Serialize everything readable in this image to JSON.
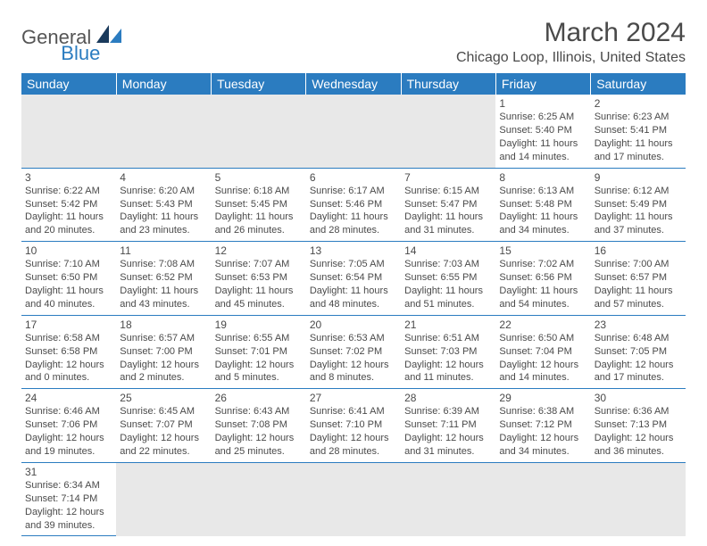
{
  "header": {
    "logo_general": "General",
    "logo_blue": "Blue",
    "month_title": "March 2024",
    "location": "Chicago Loop, Illinois, United States"
  },
  "colors": {
    "header_bg": "#2b7cc0",
    "header_text": "#ffffff",
    "cell_border": "#2b7cc0",
    "text": "#4a4a4a",
    "empty_bg": "#e8e8e8",
    "logo_blue": "#2b7cc0",
    "logo_dark": "#1a3a5c"
  },
  "typography": {
    "month_title_fontsize": 30,
    "location_fontsize": 16,
    "dayheader_fontsize": 14,
    "daynum_fontsize": 12,
    "body_fontsize": 11
  },
  "day_headers": [
    "Sunday",
    "Monday",
    "Tuesday",
    "Wednesday",
    "Thursday",
    "Friday",
    "Saturday"
  ],
  "weeks": [
    [
      null,
      null,
      null,
      null,
      null,
      {
        "n": "1",
        "sunrise": "Sunrise: 6:25 AM",
        "sunset": "Sunset: 5:40 PM",
        "daylight": "Daylight: 11 hours and 14 minutes."
      },
      {
        "n": "2",
        "sunrise": "Sunrise: 6:23 AM",
        "sunset": "Sunset: 5:41 PM",
        "daylight": "Daylight: 11 hours and 17 minutes."
      }
    ],
    [
      {
        "n": "3",
        "sunrise": "Sunrise: 6:22 AM",
        "sunset": "Sunset: 5:42 PM",
        "daylight": "Daylight: 11 hours and 20 minutes."
      },
      {
        "n": "4",
        "sunrise": "Sunrise: 6:20 AM",
        "sunset": "Sunset: 5:43 PM",
        "daylight": "Daylight: 11 hours and 23 minutes."
      },
      {
        "n": "5",
        "sunrise": "Sunrise: 6:18 AM",
        "sunset": "Sunset: 5:45 PM",
        "daylight": "Daylight: 11 hours and 26 minutes."
      },
      {
        "n": "6",
        "sunrise": "Sunrise: 6:17 AM",
        "sunset": "Sunset: 5:46 PM",
        "daylight": "Daylight: 11 hours and 28 minutes."
      },
      {
        "n": "7",
        "sunrise": "Sunrise: 6:15 AM",
        "sunset": "Sunset: 5:47 PM",
        "daylight": "Daylight: 11 hours and 31 minutes."
      },
      {
        "n": "8",
        "sunrise": "Sunrise: 6:13 AM",
        "sunset": "Sunset: 5:48 PM",
        "daylight": "Daylight: 11 hours and 34 minutes."
      },
      {
        "n": "9",
        "sunrise": "Sunrise: 6:12 AM",
        "sunset": "Sunset: 5:49 PM",
        "daylight": "Daylight: 11 hours and 37 minutes."
      }
    ],
    [
      {
        "n": "10",
        "sunrise": "Sunrise: 7:10 AM",
        "sunset": "Sunset: 6:50 PM",
        "daylight": "Daylight: 11 hours and 40 minutes."
      },
      {
        "n": "11",
        "sunrise": "Sunrise: 7:08 AM",
        "sunset": "Sunset: 6:52 PM",
        "daylight": "Daylight: 11 hours and 43 minutes."
      },
      {
        "n": "12",
        "sunrise": "Sunrise: 7:07 AM",
        "sunset": "Sunset: 6:53 PM",
        "daylight": "Daylight: 11 hours and 45 minutes."
      },
      {
        "n": "13",
        "sunrise": "Sunrise: 7:05 AM",
        "sunset": "Sunset: 6:54 PM",
        "daylight": "Daylight: 11 hours and 48 minutes."
      },
      {
        "n": "14",
        "sunrise": "Sunrise: 7:03 AM",
        "sunset": "Sunset: 6:55 PM",
        "daylight": "Daylight: 11 hours and 51 minutes."
      },
      {
        "n": "15",
        "sunrise": "Sunrise: 7:02 AM",
        "sunset": "Sunset: 6:56 PM",
        "daylight": "Daylight: 11 hours and 54 minutes."
      },
      {
        "n": "16",
        "sunrise": "Sunrise: 7:00 AM",
        "sunset": "Sunset: 6:57 PM",
        "daylight": "Daylight: 11 hours and 57 minutes."
      }
    ],
    [
      {
        "n": "17",
        "sunrise": "Sunrise: 6:58 AM",
        "sunset": "Sunset: 6:58 PM",
        "daylight": "Daylight: 12 hours and 0 minutes."
      },
      {
        "n": "18",
        "sunrise": "Sunrise: 6:57 AM",
        "sunset": "Sunset: 7:00 PM",
        "daylight": "Daylight: 12 hours and 2 minutes."
      },
      {
        "n": "19",
        "sunrise": "Sunrise: 6:55 AM",
        "sunset": "Sunset: 7:01 PM",
        "daylight": "Daylight: 12 hours and 5 minutes."
      },
      {
        "n": "20",
        "sunrise": "Sunrise: 6:53 AM",
        "sunset": "Sunset: 7:02 PM",
        "daylight": "Daylight: 12 hours and 8 minutes."
      },
      {
        "n": "21",
        "sunrise": "Sunrise: 6:51 AM",
        "sunset": "Sunset: 7:03 PM",
        "daylight": "Daylight: 12 hours and 11 minutes."
      },
      {
        "n": "22",
        "sunrise": "Sunrise: 6:50 AM",
        "sunset": "Sunset: 7:04 PM",
        "daylight": "Daylight: 12 hours and 14 minutes."
      },
      {
        "n": "23",
        "sunrise": "Sunrise: 6:48 AM",
        "sunset": "Sunset: 7:05 PM",
        "daylight": "Daylight: 12 hours and 17 minutes."
      }
    ],
    [
      {
        "n": "24",
        "sunrise": "Sunrise: 6:46 AM",
        "sunset": "Sunset: 7:06 PM",
        "daylight": "Daylight: 12 hours and 19 minutes."
      },
      {
        "n": "25",
        "sunrise": "Sunrise: 6:45 AM",
        "sunset": "Sunset: 7:07 PM",
        "daylight": "Daylight: 12 hours and 22 minutes."
      },
      {
        "n": "26",
        "sunrise": "Sunrise: 6:43 AM",
        "sunset": "Sunset: 7:08 PM",
        "daylight": "Daylight: 12 hours and 25 minutes."
      },
      {
        "n": "27",
        "sunrise": "Sunrise: 6:41 AM",
        "sunset": "Sunset: 7:10 PM",
        "daylight": "Daylight: 12 hours and 28 minutes."
      },
      {
        "n": "28",
        "sunrise": "Sunrise: 6:39 AM",
        "sunset": "Sunset: 7:11 PM",
        "daylight": "Daylight: 12 hours and 31 minutes."
      },
      {
        "n": "29",
        "sunrise": "Sunrise: 6:38 AM",
        "sunset": "Sunset: 7:12 PM",
        "daylight": "Daylight: 12 hours and 34 minutes."
      },
      {
        "n": "30",
        "sunrise": "Sunrise: 6:36 AM",
        "sunset": "Sunset: 7:13 PM",
        "daylight": "Daylight: 12 hours and 36 minutes."
      }
    ],
    [
      {
        "n": "31",
        "sunrise": "Sunrise: 6:34 AM",
        "sunset": "Sunset: 7:14 PM",
        "daylight": "Daylight: 12 hours and 39 minutes."
      },
      null,
      null,
      null,
      null,
      null,
      null
    ]
  ]
}
